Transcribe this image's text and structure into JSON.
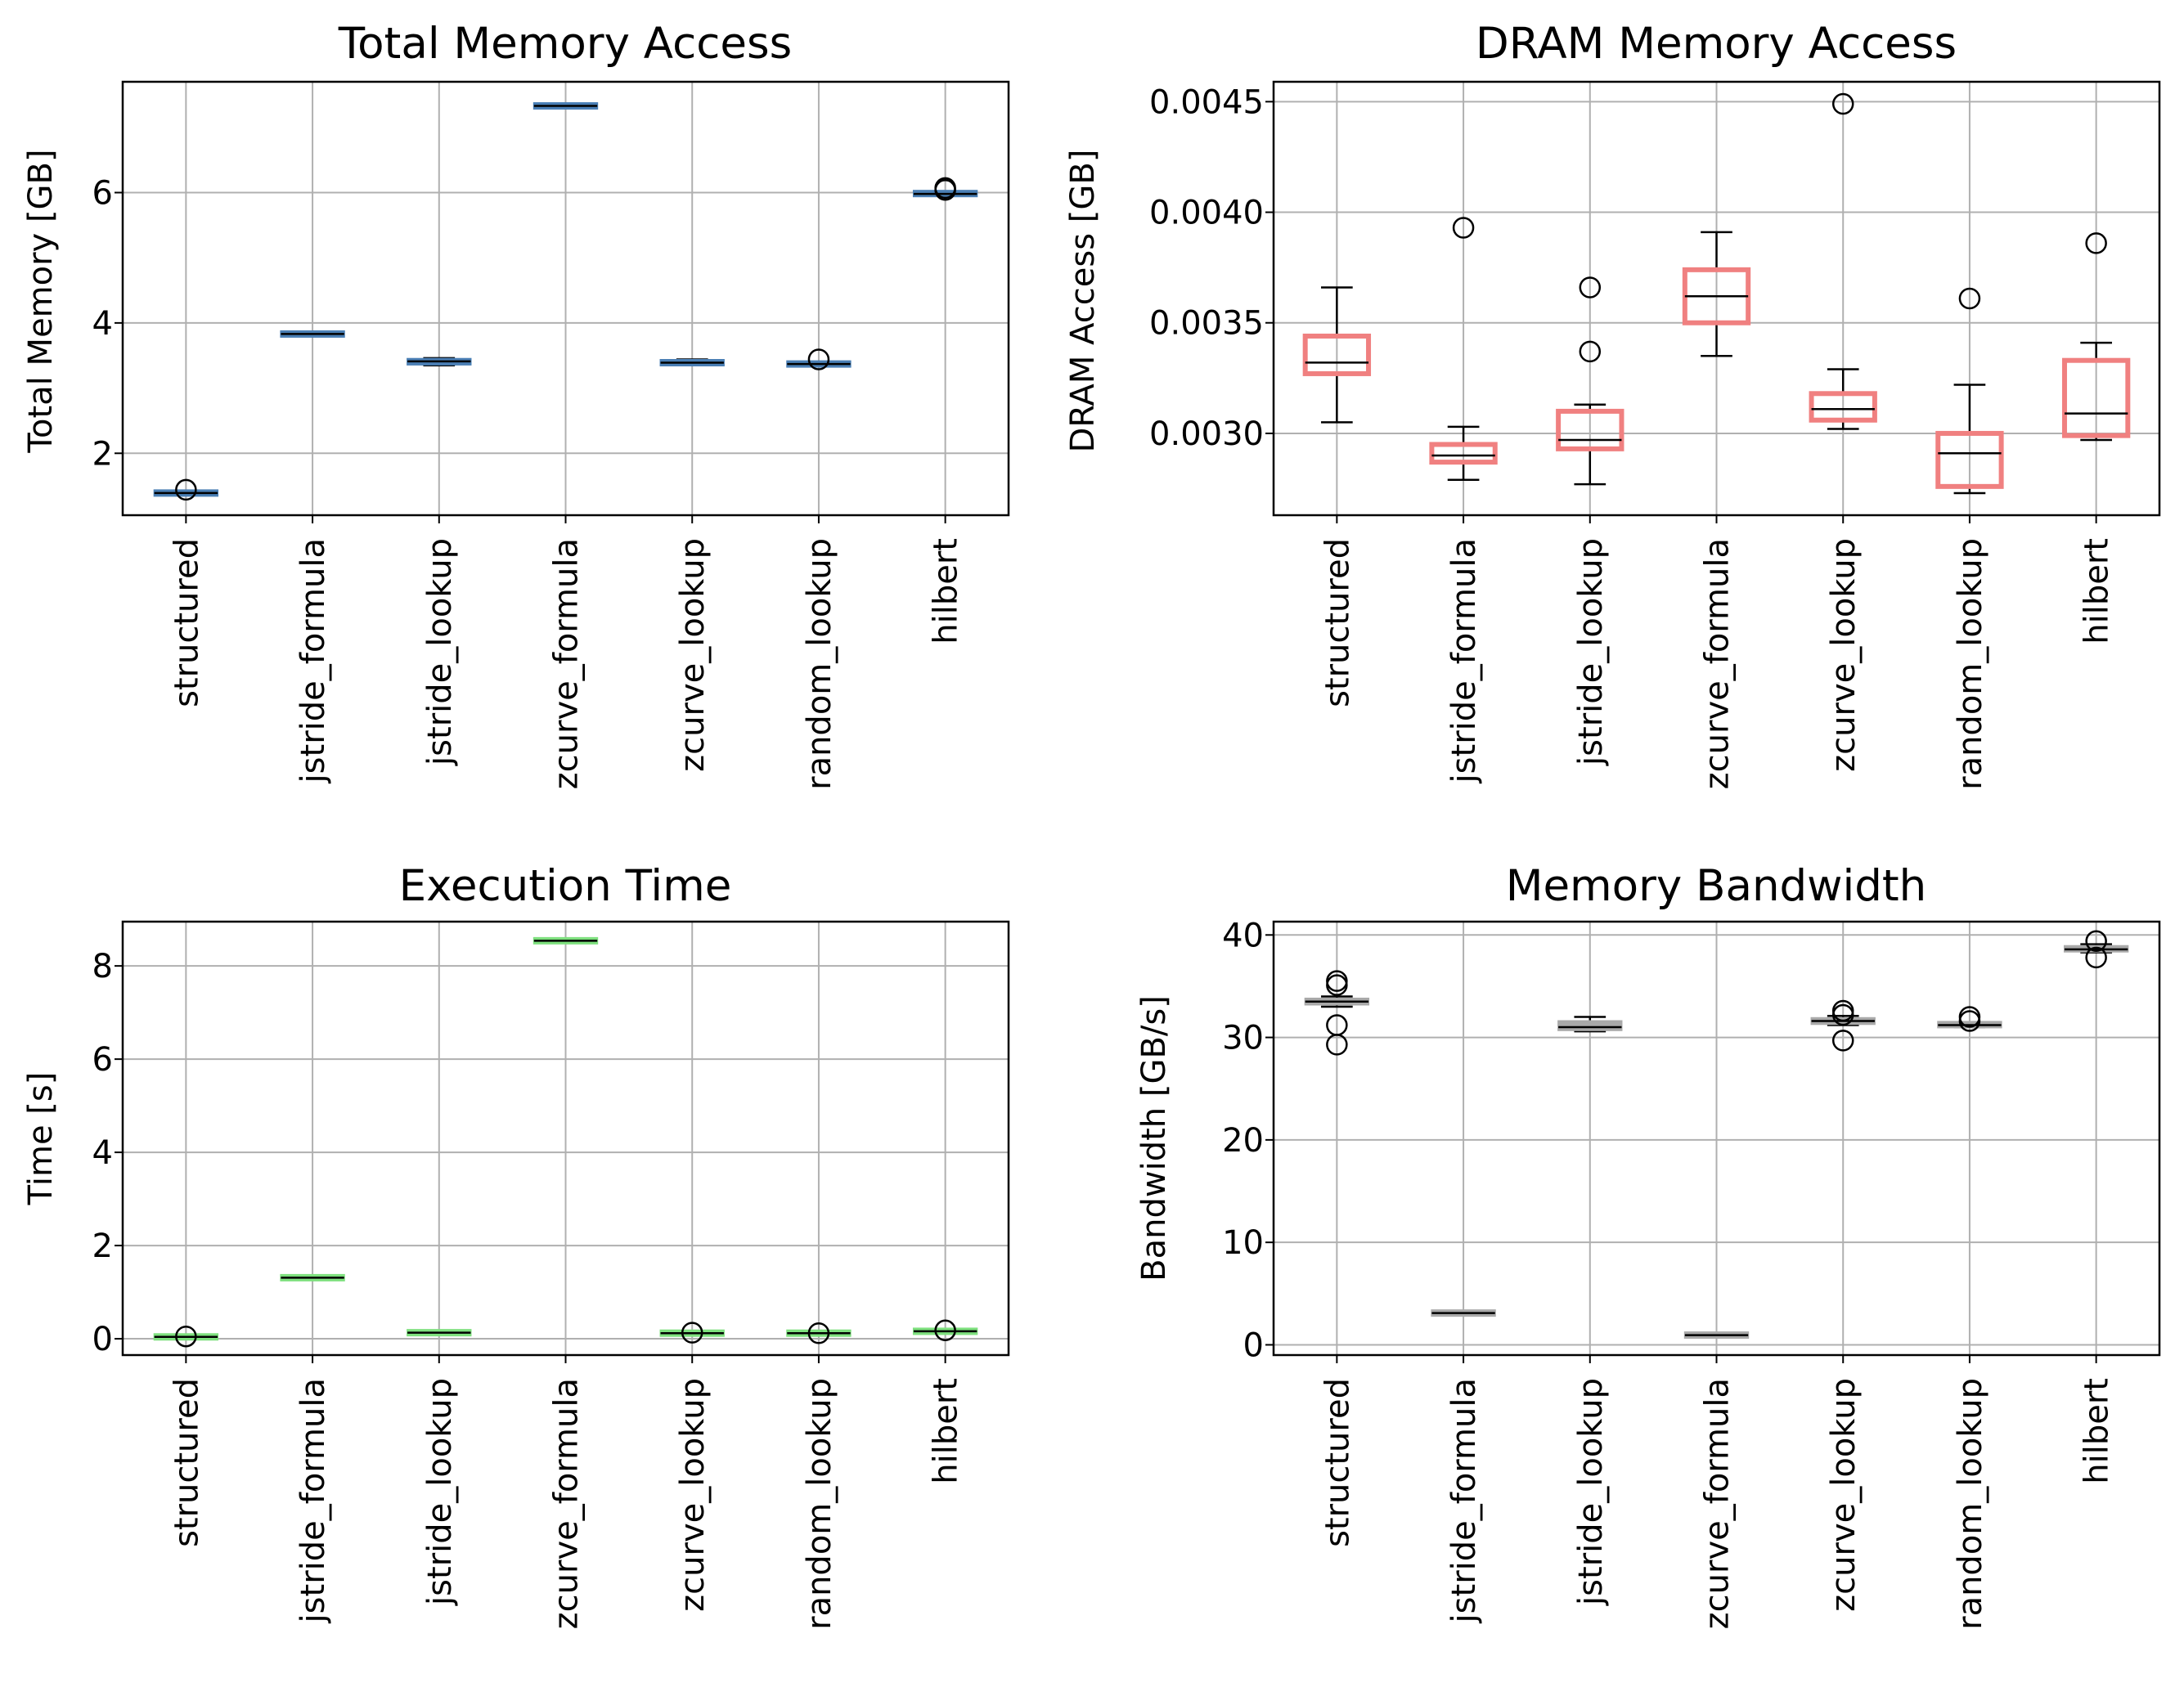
{
  "colors": {
    "grid": "#b0b0b0",
    "axes": "#000000",
    "whisker": "#000000",
    "median": "#000000",
    "flier": "#000000"
  },
  "chart_data": [
    {
      "type": "box",
      "title": "Total Memory Access",
      "xlabel": "",
      "ylabel": "Total Memory [GB]",
      "ylim": [
        1.05,
        7.7
      ],
      "yticks": [
        2,
        4,
        6
      ],
      "ytick_labels": [
        "2",
        "4",
        "6"
      ],
      "grid": true,
      "box_color": "#4a7fb5",
      "categories": [
        "structured",
        "jstride_formula",
        "jstride_lookup",
        "zcurve_formula",
        "zcurve_lookup",
        "random_lookup",
        "hilbert"
      ],
      "boxes": [
        {
          "whislo": 1.37,
          "q1": 1.38,
          "med": 1.39,
          "q3": 1.4,
          "whishi": 1.41,
          "fliers": [
            1.44
          ]
        },
        {
          "whislo": 3.81,
          "q1": 3.82,
          "med": 3.83,
          "q3": 3.84,
          "whishi": 3.85,
          "fliers": []
        },
        {
          "whislo": 3.35,
          "q1": 3.36,
          "med": 3.41,
          "q3": 3.45,
          "whishi": 3.46,
          "fliers": []
        },
        {
          "whislo": 7.31,
          "q1": 7.32,
          "med": 7.33,
          "q3": 7.34,
          "whishi": 7.35,
          "fliers": []
        },
        {
          "whislo": 3.35,
          "q1": 3.36,
          "med": 3.39,
          "q3": 3.42,
          "whishi": 3.44,
          "fliers": []
        },
        {
          "whislo": 3.35,
          "q1": 3.36,
          "med": 3.37,
          "q3": 3.38,
          "whishi": 3.39,
          "fliers": [
            3.44
          ]
        },
        {
          "whislo": 5.96,
          "q1": 5.97,
          "med": 5.98,
          "q3": 6.0,
          "whishi": 6.01,
          "fliers": [
            6.04,
            6.07
          ]
        }
      ]
    },
    {
      "type": "box",
      "title": "DRAM Memory Access",
      "xlabel": "",
      "ylabel": "DRAM Access [GB]",
      "ylim": [
        0.00263,
        0.00459
      ],
      "yticks": [
        0.003,
        0.0035,
        0.004,
        0.0045
      ],
      "ytick_labels": [
        "0.0030",
        "0.0035",
        "0.0040",
        "0.0045"
      ],
      "grid": true,
      "box_color": "#f08080",
      "categories": [
        "structured",
        "jstride_formula",
        "jstride_lookup",
        "zcurve_formula",
        "zcurve_lookup",
        "random_lookup",
        "hilbert"
      ],
      "boxes": [
        {
          "whislo": 0.00305,
          "q1": 0.00327,
          "med": 0.00332,
          "q3": 0.00344,
          "whishi": 0.00366,
          "fliers": []
        },
        {
          "whislo": 0.00279,
          "q1": 0.00287,
          "med": 0.0029,
          "q3": 0.00295,
          "whishi": 0.00303,
          "fliers": [
            0.00393
          ]
        },
        {
          "whislo": 0.00277,
          "q1": 0.00293,
          "med": 0.00297,
          "q3": 0.0031,
          "whishi": 0.00313,
          "fliers": [
            0.00337,
            0.00366
          ]
        },
        {
          "whislo": 0.00335,
          "q1": 0.0035,
          "med": 0.00362,
          "q3": 0.00374,
          "whishi": 0.00391,
          "fliers": []
        },
        {
          "whislo": 0.00302,
          "q1": 0.00306,
          "med": 0.00311,
          "q3": 0.00318,
          "whishi": 0.00329,
          "fliers": [
            0.00449
          ]
        },
        {
          "whislo": 0.00273,
          "q1": 0.00276,
          "med": 0.00291,
          "q3": 0.003,
          "whishi": 0.00322,
          "fliers": [
            0.00361
          ]
        },
        {
          "whislo": 0.00297,
          "q1": 0.00299,
          "med": 0.00309,
          "q3": 0.00333,
          "whishi": 0.00341,
          "fliers": [
            0.00386
          ]
        }
      ]
    },
    {
      "type": "box",
      "title": "Execution Time",
      "xlabel": "",
      "ylabel": "Time [s]",
      "ylim": [
        -0.35,
        8.95
      ],
      "yticks": [
        0,
        2,
        4,
        6,
        8
      ],
      "ytick_labels": [
        "0",
        "2",
        "4",
        "6",
        "8"
      ],
      "grid": true,
      "box_color": "#7ee07e",
      "categories": [
        "structured",
        "jstride_formula",
        "jstride_lookup",
        "zcurve_formula",
        "zcurve_lookup",
        "random_lookup",
        "hilbert"
      ],
      "boxes": [
        {
          "whislo": 0.02,
          "q1": 0.03,
          "med": 0.04,
          "q3": 0.05,
          "whishi": 0.06,
          "fliers": [
            0.05
          ]
        },
        {
          "whislo": 1.29,
          "q1": 1.3,
          "med": 1.31,
          "q3": 1.32,
          "whishi": 1.33,
          "fliers": []
        },
        {
          "whislo": 0.11,
          "q1": 0.12,
          "med": 0.13,
          "q3": 0.14,
          "whishi": 0.15,
          "fliers": []
        },
        {
          "whislo": 8.52,
          "q1": 8.53,
          "med": 8.54,
          "q3": 8.55,
          "whishi": 8.56,
          "fliers": []
        },
        {
          "whislo": 0.1,
          "q1": 0.11,
          "med": 0.12,
          "q3": 0.13,
          "whishi": 0.14,
          "fliers": [
            0.13
          ]
        },
        {
          "whislo": 0.1,
          "q1": 0.11,
          "med": 0.12,
          "q3": 0.13,
          "whishi": 0.14,
          "fliers": [
            0.12
          ]
        },
        {
          "whislo": 0.14,
          "q1": 0.15,
          "med": 0.16,
          "q3": 0.17,
          "whishi": 0.18,
          "fliers": [
            0.18
          ]
        }
      ]
    },
    {
      "type": "box",
      "title": "Memory Bandwidth",
      "xlabel": "",
      "ylabel": "Bandwidth [GB/s]",
      "ylim": [
        -1.0,
        41.3
      ],
      "yticks": [
        0,
        10,
        20,
        30,
        40
      ],
      "ytick_labels": [
        "0",
        "10",
        "20",
        "30",
        "40"
      ],
      "grid": true,
      "box_color": "#a9a9a9",
      "categories": [
        "structured",
        "jstride_formula",
        "jstride_lookup",
        "zcurve_formula",
        "zcurve_lookup",
        "random_lookup",
        "hilbert"
      ],
      "boxes": [
        {
          "whislo": 33.0,
          "q1": 33.2,
          "med": 33.5,
          "q3": 33.8,
          "whishi": 34.0,
          "fliers": [
            29.3,
            31.2,
            35.1,
            35.5
          ]
        },
        {
          "whislo": 3.0,
          "q1": 3.05,
          "med": 3.1,
          "q3": 3.15,
          "whishi": 3.2,
          "fliers": []
        },
        {
          "whislo": 30.6,
          "q1": 30.7,
          "med": 31.0,
          "q3": 31.6,
          "whishi": 32.0,
          "fliers": []
        },
        {
          "whislo": 0.85,
          "q1": 0.9,
          "med": 0.95,
          "q3": 1.0,
          "whishi": 1.05,
          "fliers": []
        },
        {
          "whislo": 31.2,
          "q1": 31.3,
          "med": 31.6,
          "q3": 31.9,
          "whishi": 32.1,
          "fliers": [
            29.7,
            32.2,
            32.6
          ]
        },
        {
          "whislo": 31.0,
          "q1": 31.1,
          "med": 31.2,
          "q3": 31.4,
          "whishi": 31.5,
          "fliers": [
            31.6,
            32.0
          ]
        },
        {
          "whislo": 38.3,
          "q1": 38.4,
          "med": 38.6,
          "q3": 38.9,
          "whishi": 39.1,
          "fliers": [
            37.8,
            39.4
          ]
        }
      ]
    }
  ]
}
